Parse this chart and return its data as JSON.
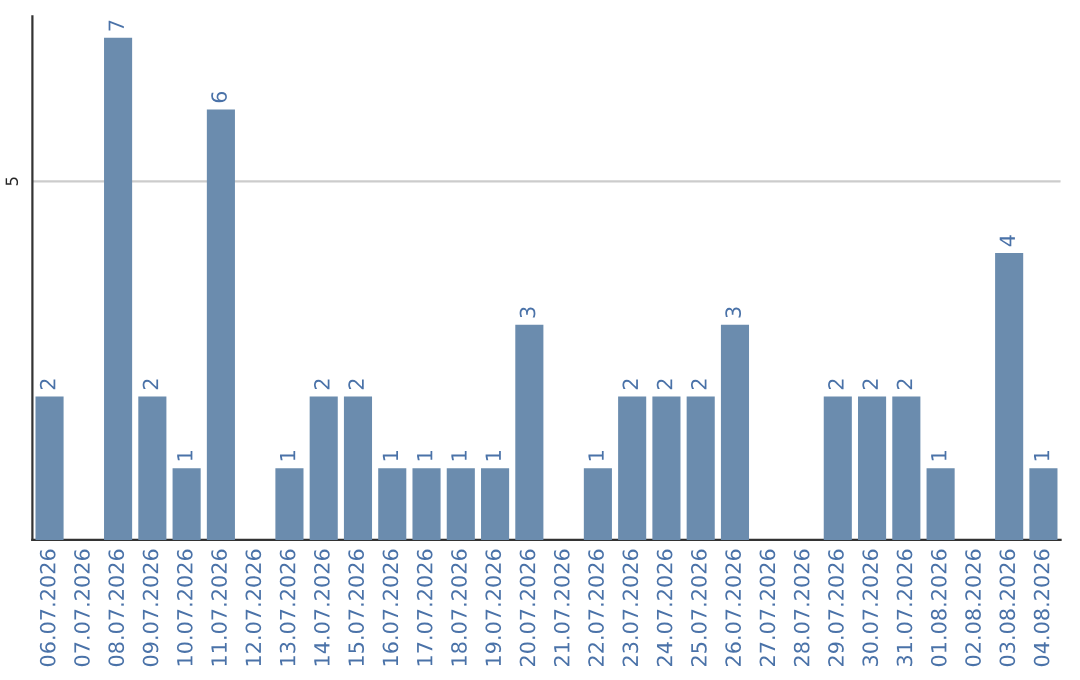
{
  "chart_data": {
    "type": "bar",
    "categories": [
      "06.07.2026",
      "07.07.2026",
      "08.07.2026",
      "09.07.2026",
      "10.07.2026",
      "11.07.2026",
      "12.07.2026",
      "13.07.2026",
      "14.07.2026",
      "15.07.2026",
      "16.07.2026",
      "17.07.2026",
      "18.07.2026",
      "19.07.2026",
      "20.07.2026",
      "21.07.2026",
      "22.07.2026",
      "23.07.2026",
      "24.07.2026",
      "25.07.2026",
      "26.07.2026",
      "27.07.2026",
      "28.07.2026",
      "29.07.2026",
      "30.07.2026",
      "31.07.2026",
      "01.08.2026",
      "02.08.2026",
      "03.08.2026",
      "04.08.2026"
    ],
    "values": [
      2,
      null,
      7,
      2,
      1,
      6,
      null,
      1,
      2,
      2,
      1,
      1,
      1,
      1,
      3,
      null,
      1,
      2,
      2,
      2,
      3,
      null,
      null,
      2,
      2,
      2,
      1,
      null,
      4,
      1
    ],
    "value_labels": [
      "2",
      null,
      "7",
      "2",
      "1",
      "6",
      null,
      "1",
      "2",
      "2",
      "1",
      "1",
      "1",
      "1",
      "3",
      null,
      "1",
      "2",
      "2",
      "2",
      "3",
      null,
      null,
      "2",
      "2",
      "2",
      "1",
      null,
      "4",
      "1"
    ],
    "color": "#6b8cae",
    "ylim": [
      0,
      7.3
    ],
    "yticks": [
      5
    ],
    "grid": "y",
    "legend": false
  }
}
